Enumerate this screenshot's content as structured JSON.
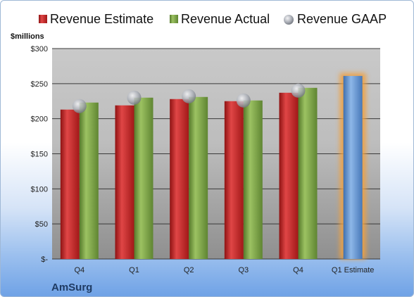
{
  "chart_data": {
    "type": "bar",
    "title": "",
    "company": "AmSurg",
    "ylabel": "$millions",
    "ylim": [
      0,
      300
    ],
    "yticks": [
      0,
      50,
      100,
      150,
      200,
      250,
      300
    ],
    "ytick_labels": [
      "$-",
      "$50",
      "$100",
      "$150",
      "$200",
      "$250",
      "$300"
    ],
    "categories": [
      "Q4",
      "Q1",
      "Q2",
      "Q3",
      "Q4",
      "Q1 Estimate"
    ],
    "legend_position": "top",
    "grid": true,
    "series": [
      {
        "name": "Revenue Estimate",
        "kind": "bar",
        "color": "#d42a2a",
        "values": [
          213,
          219,
          228,
          225,
          237,
          null
        ]
      },
      {
        "name": "Revenue Actual",
        "kind": "bar",
        "color": "#7fa54a",
        "values": [
          223,
          230,
          231,
          226,
          244,
          null
        ]
      },
      {
        "name": "Revenue GAAP",
        "kind": "marker",
        "color": "#b8bcc4",
        "values": [
          218,
          230,
          232,
          226,
          240,
          null
        ]
      },
      {
        "name": "",
        "kind": "bar",
        "color": "#6f9fd8",
        "highlight": "#f0a040",
        "values": [
          null,
          null,
          null,
          null,
          null,
          261
        ]
      }
    ]
  }
}
